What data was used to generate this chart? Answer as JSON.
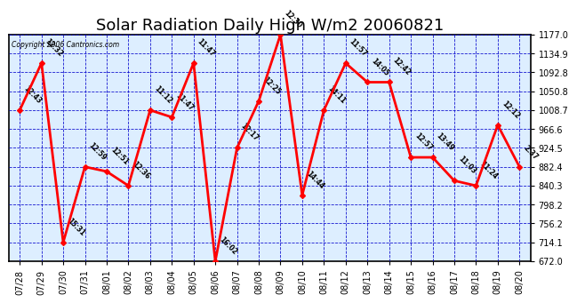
{
  "title": "Solar Radiation Daily High W/m2 20060821",
  "copyright": "Copyright 2006 Cantronics.com",
  "dates": [
    "07/28",
    "07/29",
    "07/30",
    "07/31",
    "08/01",
    "08/02",
    "08/03",
    "08/04",
    "08/05",
    "08/06",
    "08/07",
    "08/08",
    "08/09",
    "08/10",
    "08/11",
    "08/12",
    "08/13",
    "08/14",
    "08/15",
    "08/16",
    "08/17",
    "08/18",
    "08/19",
    "08/20"
  ],
  "values": [
    1008.7,
    1113.5,
    714.1,
    882.4,
    872.0,
    840.3,
    1008.7,
    993.0,
    1113.5,
    672.0,
    924.5,
    1029.0,
    1177.0,
    819.0,
    1008.7,
    1113.5,
    1071.0,
    1071.0,
    903.5,
    903.5,
    851.5,
    840.3,
    975.5,
    882.4
  ],
  "time_labels": [
    "12:43",
    "12:32",
    "15:31",
    "12:59",
    "12:51",
    "12:36",
    "11:12",
    "11:47",
    "11:47",
    "16:02",
    "12:17",
    "12:25",
    "12:30",
    "14:44",
    "14:11",
    "11:57",
    "14:05",
    "12:42",
    "12:57",
    "13:49",
    "11:03",
    "11:24",
    "12:12",
    "2:37"
  ],
  "yticks": [
    672.0,
    714.1,
    756.2,
    798.2,
    840.3,
    882.4,
    924.5,
    966.6,
    1008.7,
    1050.8,
    1092.8,
    1134.9,
    1177.0
  ],
  "ylim": [
    672.0,
    1177.0
  ],
  "line_color": "#FF0000",
  "marker_color": "#FF0000",
  "fig_bg": "#FFFFFF",
  "plot_bg": "#DDEEFF",
  "grid_color": "#0000CC",
  "title_fontsize": 13,
  "tick_fontsize": 7,
  "label_fontsize": 6,
  "line_width": 2.0,
  "marker_size": 3
}
